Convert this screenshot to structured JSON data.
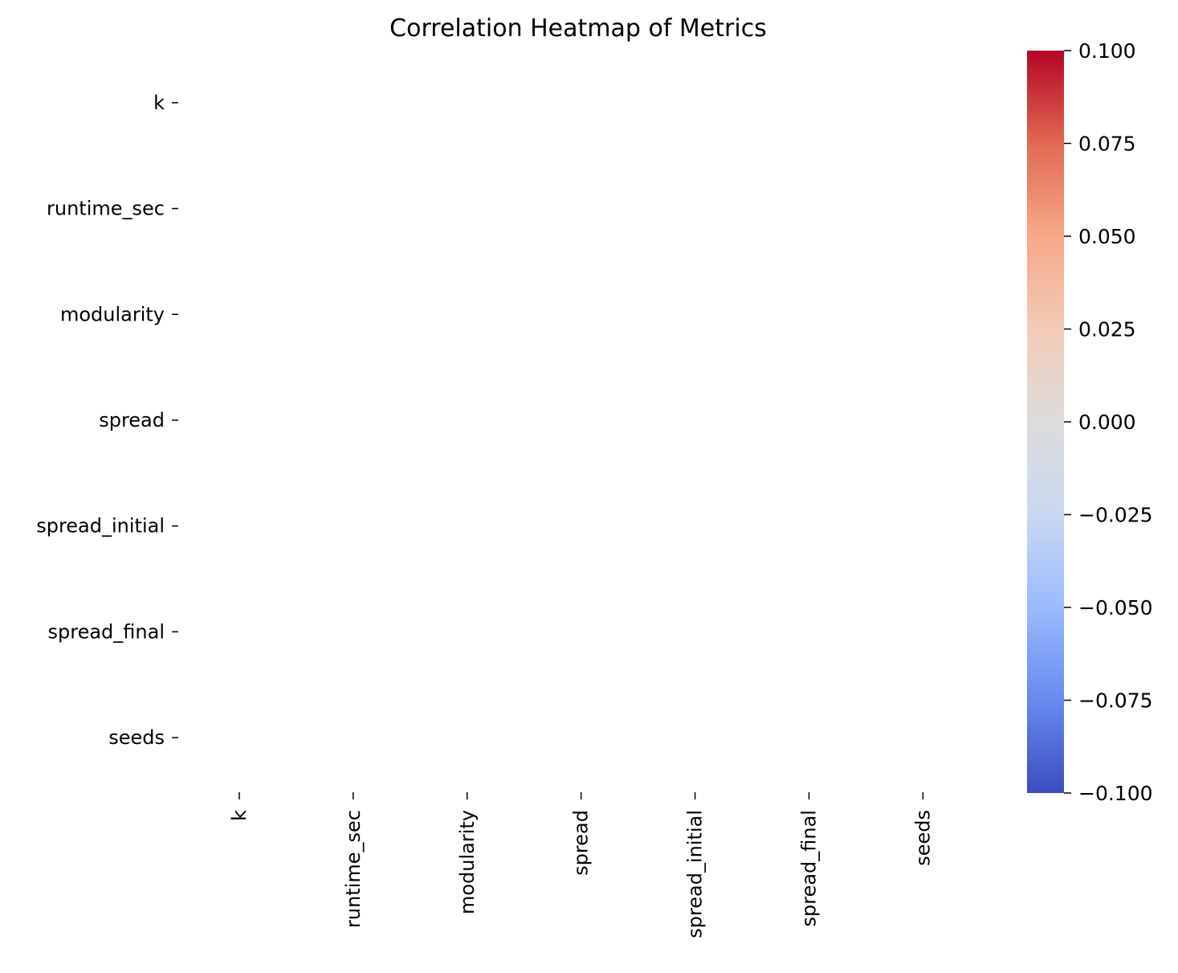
{
  "chart_data": {
    "type": "heatmap",
    "title": "Correlation Heatmap of Metrics",
    "row_labels": [
      "k",
      "runtime_sec",
      "modularity",
      "spread",
      "spread_initial",
      "spread_final",
      "seeds"
    ],
    "col_labels": [
      "k",
      "runtime_sec",
      "modularity",
      "spread",
      "spread_initial",
      "spread_final",
      "seeds"
    ],
    "values": [
      [
        null,
        null,
        null,
        null,
        null,
        null,
        null
      ],
      [
        null,
        null,
        null,
        null,
        null,
        null,
        null
      ],
      [
        null,
        null,
        null,
        null,
        null,
        null,
        null
      ],
      [
        null,
        null,
        null,
        null,
        null,
        null,
        null
      ],
      [
        null,
        null,
        null,
        null,
        null,
        null,
        null
      ],
      [
        null,
        null,
        null,
        null,
        null,
        null,
        null
      ],
      [
        null,
        null,
        null,
        null,
        null,
        null,
        null
      ]
    ],
    "colorbar": {
      "colormap": "coolwarm",
      "min": -0.1,
      "max": 0.1,
      "ticks": [
        0.1,
        0.075,
        0.05,
        0.025,
        0.0,
        -0.025,
        -0.05,
        -0.075,
        -0.1
      ],
      "tick_labels": [
        "0.100",
        "0.075",
        "0.050",
        "0.025",
        "0.000",
        "−0.025",
        "−0.050",
        "−0.075",
        "−0.100"
      ],
      "stops": [
        "#3b4cc0",
        "#688aef",
        "#9abbff",
        "#c9d7f0",
        "#dddcdc",
        "#f2cbb7",
        "#f7a889",
        "#e26952",
        "#b40426"
      ]
    },
    "xlabel": "",
    "ylabel": "",
    "grid": false
  }
}
